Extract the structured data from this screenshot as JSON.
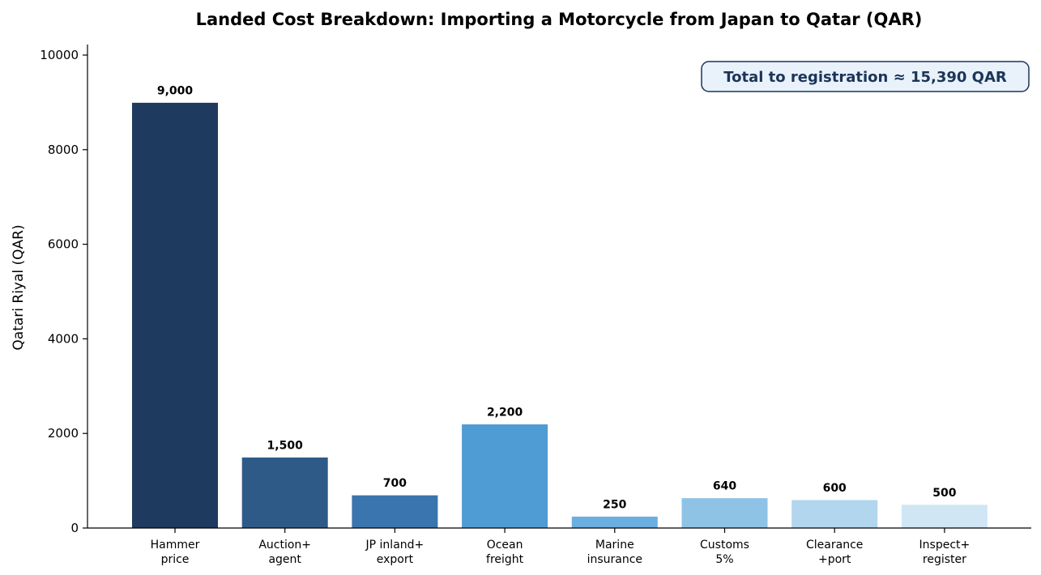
{
  "chart_data": {
    "type": "bar",
    "title": "Landed Cost Breakdown: Importing a Motorcycle from Japan to Qatar (QAR)",
    "ylabel": "Qatari Riyal (QAR)",
    "xlabel": "",
    "ylim": [
      0,
      10200
    ],
    "yticks": [
      "0",
      "2000",
      "4000",
      "6000",
      "8000",
      "10000"
    ],
    "categories": [
      [
        "Hammer",
        "price"
      ],
      [
        "Auction+",
        "agent"
      ],
      [
        "JP inland+",
        "export"
      ],
      [
        "Ocean",
        "freight"
      ],
      [
        "Marine",
        "insurance"
      ],
      [
        "Customs",
        "5%"
      ],
      [
        "Clearance",
        "+port"
      ],
      [
        "Inspect+",
        "register"
      ]
    ],
    "values": [
      9000,
      1500,
      700,
      2200,
      250,
      640,
      600,
      500
    ],
    "value_labels": [
      "9,000",
      "1,500",
      "700",
      "2,200",
      "250",
      "640",
      "600",
      "500"
    ],
    "colors": [
      "#1f3a5f",
      "#2e5a87",
      "#3a75ad",
      "#4f9bd3",
      "#6aafe0",
      "#8ec3e6",
      "#b2d6ee",
      "#d0e6f5"
    ],
    "grid": false,
    "annotation": {
      "text": "Total to registration ≈ 15,390 QAR",
      "placement": "top-right",
      "text_color": "#1b3558",
      "box_fill": "#e9f1fa",
      "box_border": "#1b3558"
    }
  }
}
